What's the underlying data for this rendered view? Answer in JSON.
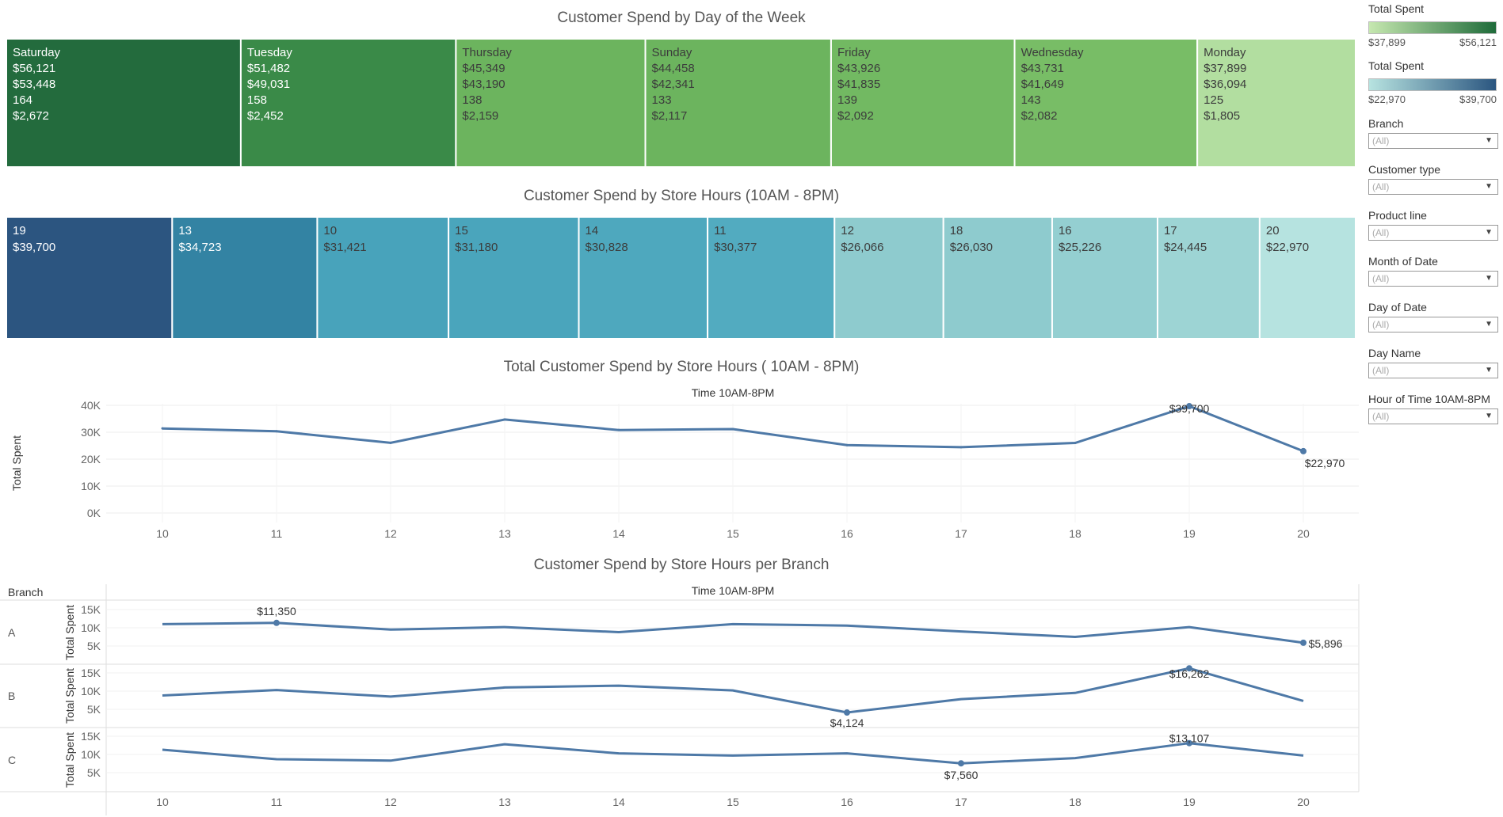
{
  "dashboard": {
    "day_title": "Customer Spend by Day of the Week",
    "hour_title": "Customer Spend by Store Hours (10AM - 8PM)",
    "line_title": "Total Customer Spend by Store Hours ( 10AM - 8PM)",
    "branch_title": "Customer Spend by Store Hours per Branch",
    "time_header": "Time 10AM-8PM",
    "branch_header": "Branch",
    "y_axis_label": "Total Spent"
  },
  "legends": [
    {
      "title": "Total Spent",
      "min_label": "$37,899",
      "max_label": "$56,121",
      "from": "#c6e8b0",
      "to": "#1f6b3a"
    },
    {
      "title": "Total Spent",
      "min_label": "$22,970",
      "max_label": "$39,700",
      "from": "#b7e3e0",
      "to": "#2b5680"
    }
  ],
  "filters": [
    {
      "label": "Branch",
      "value": "(All)"
    },
    {
      "label": "Customer type",
      "value": "(All)"
    },
    {
      "label": "Product line",
      "value": "(All)"
    },
    {
      "label": "Month of Date",
      "value": "(All)"
    },
    {
      "label": "Day of Date",
      "value": "(All)"
    },
    {
      "label": "Day Name",
      "value": "(All)"
    },
    {
      "label": "Hour of Time 10AM-8PM",
      "value": "(All)"
    }
  ],
  "chart_data": [
    {
      "type": "heatmap",
      "title": "Customer Spend by Day of the Week",
      "categories": [
        "Saturday",
        "Tuesday",
        "Thursday",
        "Sunday",
        "Friday",
        "Wednesday",
        "Monday"
      ],
      "total_spent": [
        56121,
        51482,
        45349,
        44458,
        43926,
        43731,
        37899
      ],
      "labels": [
        [
          "Saturday",
          "$56,121",
          "$53,448",
          "164",
          "$2,672"
        ],
        [
          "Tuesday",
          "$51,482",
          "$49,031",
          "158",
          "$2,452"
        ],
        [
          "Thursday",
          "$45,349",
          "$43,190",
          "138",
          "$2,159"
        ],
        [
          "Sunday",
          "$44,458",
          "$42,341",
          "133",
          "$2,117"
        ],
        [
          "Friday",
          "$43,926",
          "$41,835",
          "139",
          "$2,092"
        ],
        [
          "Wednesday",
          "$43,731",
          "$41,649",
          "143",
          "$2,082"
        ],
        [
          "Monday",
          "$37,899",
          "$36,094",
          "125",
          "$1,805"
        ]
      ],
      "colors": [
        "#236b3d",
        "#3a8a48",
        "#6cb45e",
        "#6cb45e",
        "#72b962",
        "#78bd66",
        "#b2dea0"
      ]
    },
    {
      "type": "heatmap",
      "title": "Customer Spend by Store Hours (10AM - 8PM)",
      "categories": [
        "19",
        "13",
        "10",
        "15",
        "14",
        "11",
        "12",
        "18",
        "16",
        "17",
        "20"
      ],
      "total_spent": [
        39700,
        34723,
        31421,
        31180,
        30828,
        30377,
        26066,
        26030,
        25226,
        24445,
        22970
      ],
      "labels": [
        [
          "19",
          "$39,700"
        ],
        [
          "13",
          "$34,723"
        ],
        [
          "10",
          "$31,421"
        ],
        [
          "15",
          "$31,180"
        ],
        [
          "14",
          "$30,828"
        ],
        [
          "11",
          "$30,377"
        ],
        [
          "12",
          "$26,066"
        ],
        [
          "18",
          "$26,030"
        ],
        [
          "16",
          "$25,226"
        ],
        [
          "17",
          "$24,445"
        ],
        [
          "20",
          "$22,970"
        ]
      ],
      "colors": [
        "#2c5580",
        "#3383a3",
        "#48a3bb",
        "#4aa5bc",
        "#4ea8be",
        "#52abc0",
        "#8ecbce",
        "#8ecbce",
        "#94cfd1",
        "#9dd4d4",
        "#b6e3e0"
      ]
    },
    {
      "type": "line",
      "title": "Total Customer Spend by Store Hours ( 10AM - 8PM)",
      "x": [
        "10",
        "11",
        "12",
        "13",
        "14",
        "15",
        "16",
        "17",
        "18",
        "19",
        "20"
      ],
      "values": [
        31421,
        30377,
        26066,
        34723,
        30828,
        31180,
        25226,
        24445,
        26030,
        39700,
        22970
      ],
      "ylabel": "Total Spent",
      "yticks": [
        "40K",
        "30K",
        "20K",
        "10K",
        "0K"
      ],
      "ylim": [
        0,
        40000
      ],
      "annotations": [
        {
          "x": "19",
          "label": "$39,700"
        },
        {
          "x": "20",
          "label": "$22,970"
        }
      ],
      "color": "#4e79a7"
    },
    {
      "type": "line",
      "title": "Customer Spend by Store Hours per Branch",
      "x": [
        "10",
        "11",
        "12",
        "13",
        "14",
        "15",
        "16",
        "17",
        "18",
        "19",
        "20"
      ],
      "ylabel": "Total Spent",
      "yticks": [
        "15K",
        "10K",
        "5K"
      ],
      "ylim": [
        0,
        17000
      ],
      "series": [
        {
          "name": "A",
          "values": [
            11000,
            11350,
            9500,
            10200,
            8800,
            11000,
            10600,
            9000,
            7500,
            10200,
            5896
          ],
          "annotations": [
            {
              "x": "11",
              "label": "$11,350"
            },
            {
              "x": "20",
              "label": "$5,896"
            }
          ]
        },
        {
          "name": "B",
          "values": [
            8800,
            10300,
            8500,
            11000,
            11500,
            10200,
            4124,
            7800,
            9500,
            16262,
            7300
          ],
          "annotations": [
            {
              "x": "16",
              "label": "$4,124"
            },
            {
              "x": "19",
              "label": "$16,262"
            }
          ]
        },
        {
          "name": "C",
          "values": [
            11300,
            8700,
            8300,
            12800,
            10300,
            9700,
            10300,
            7560,
            9000,
            13107,
            9700
          ],
          "annotations": [
            {
              "x": "17",
              "label": "$7,560"
            },
            {
              "x": "19",
              "label": "$13,107"
            }
          ]
        }
      ],
      "color": "#4e79a7"
    }
  ]
}
